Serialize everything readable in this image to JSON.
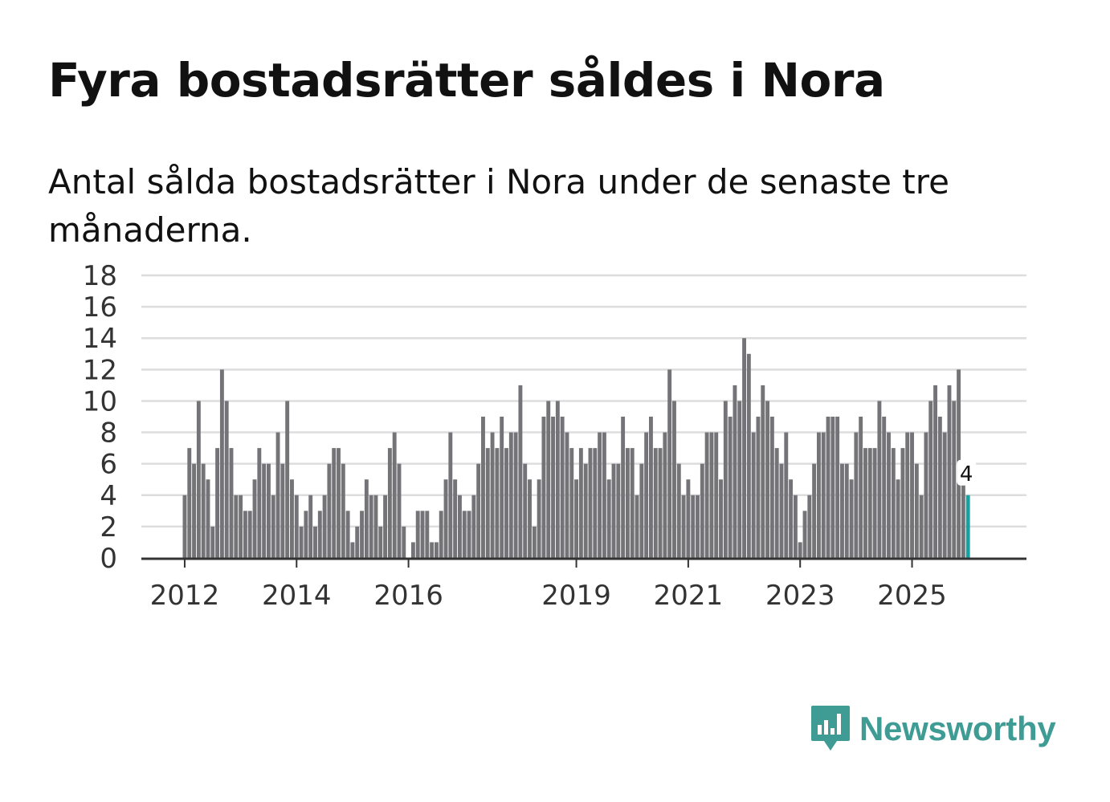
{
  "title": "Fyra bostadsrätter såldes i Nora",
  "subtitle": "Antal sålda bostadsrätter i Nora under de senaste tre månaderna.",
  "brand": {
    "name": "Newsworthy",
    "color": "#3f9c94",
    "icon": "newsworthy-logo-icon"
  },
  "colors": {
    "bar": "#747478",
    "highlight": "#17a2a2",
    "grid": "#dddddd",
    "axis": "#333333"
  },
  "chart_data": {
    "type": "bar",
    "title": "Fyra bostadsrätter såldes i Nora",
    "xlabel": "",
    "ylabel": "",
    "ylim": [
      0,
      18
    ],
    "yticks": [
      0,
      2,
      4,
      6,
      8,
      10,
      12,
      14,
      16,
      18
    ],
    "xtick_labels": [
      {
        "label": "2012",
        "index": 0
      },
      {
        "label": "2014",
        "index": 24
      },
      {
        "label": "2016",
        "index": 48
      },
      {
        "label": "2019",
        "index": 84
      },
      {
        "label": "2021",
        "index": 108
      },
      {
        "label": "2023",
        "index": 132
      },
      {
        "label": "2025",
        "index": 156
      }
    ],
    "start": "2012-01",
    "frequency": "monthly",
    "values": [
      4,
      7,
      6,
      10,
      6,
      5,
      2,
      7,
      12,
      10,
      7,
      4,
      4,
      3,
      3,
      5,
      7,
      6,
      6,
      4,
      8,
      6,
      10,
      5,
      4,
      2,
      3,
      4,
      2,
      3,
      4,
      6,
      7,
      7,
      6,
      3,
      1,
      2,
      3,
      5,
      4,
      4,
      2,
      4,
      7,
      8,
      6,
      2,
      0,
      1,
      3,
      3,
      3,
      1,
      1,
      3,
      5,
      8,
      5,
      4,
      3,
      3,
      4,
      6,
      9,
      7,
      8,
      7,
      9,
      7,
      8,
      8,
      11,
      6,
      5,
      2,
      5,
      9,
      10,
      9,
      10,
      9,
      8,
      7,
      5,
      7,
      6,
      7,
      7,
      8,
      8,
      5,
      6,
      6,
      9,
      7,
      7,
      4,
      6,
      8,
      9,
      7,
      7,
      8,
      12,
      10,
      6,
      4,
      5,
      4,
      4,
      6,
      8,
      8,
      8,
      5,
      10,
      9,
      11,
      10,
      14,
      13,
      8,
      9,
      11,
      10,
      9,
      7,
      6,
      8,
      5,
      4,
      1,
      3,
      4,
      6,
      8,
      8,
      9,
      9,
      9,
      6,
      6,
      5,
      8,
      9,
      7,
      7,
      7,
      10,
      9,
      8,
      7,
      5,
      7,
      8,
      8,
      6,
      4,
      8,
      10,
      11,
      9,
      8,
      11,
      10,
      12,
      5,
      4
    ],
    "annotation": {
      "index": 168,
      "text": "4"
    }
  }
}
